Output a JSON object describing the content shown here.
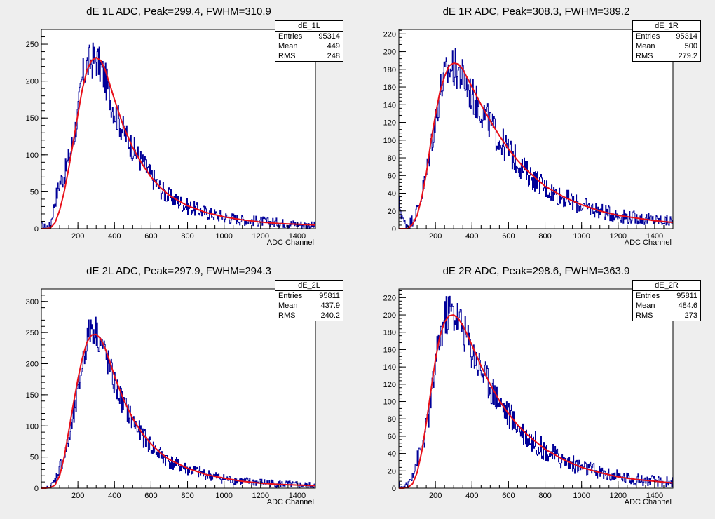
{
  "chart_data": [
    {
      "type": "histogram",
      "title": "dE 1L ADC, Peak=299.4, FWHM=310.9",
      "xlabel": "ADC Channel",
      "xlim": [
        0,
        1500
      ],
      "ylim": [
        0,
        270
      ],
      "yticks": [
        0,
        50,
        100,
        150,
        200,
        250
      ],
      "xticks": [
        200,
        400,
        600,
        800,
        1000,
        1200,
        1400
      ],
      "stats": {
        "name": "dE_1L",
        "entries": "95314",
        "mean": "449",
        "rms": "248"
      },
      "curve": {
        "peak": 299.4,
        "height": 232
      },
      "series": [
        {
          "kind": "histogram",
          "color": "#000099",
          "x": [
            0,
            25,
            50,
            75,
            100,
            125,
            150,
            175,
            200,
            225,
            250,
            275,
            300,
            325,
            350,
            375,
            400,
            450,
            500,
            550,
            600,
            650,
            700,
            800,
            900,
            1000,
            1100,
            1200,
            1300,
            1400,
            1500
          ],
          "values": [
            4,
            2,
            5,
            38,
            62,
            72,
            95,
            120,
            155,
            205,
            222,
            228,
            230,
            218,
            202,
            180,
            160,
            132,
            110,
            90,
            72,
            55,
            43,
            30,
            22,
            16,
            12,
            10,
            8,
            6,
            4
          ]
        },
        {
          "kind": "fit",
          "color": "#e8101a",
          "x": [
            0,
            25,
            50,
            75,
            100,
            125,
            150,
            175,
            200,
            225,
            250,
            275,
            300,
            325,
            350,
            375,
            400,
            450,
            500,
            550,
            600,
            650,
            700,
            800,
            900,
            1000,
            1100,
            1200,
            1300,
            1400,
            1500
          ],
          "values": [
            0,
            0,
            1,
            8,
            25,
            50,
            82,
            118,
            155,
            190,
            215,
            228,
            232,
            228,
            215,
            195,
            175,
            138,
            110,
            88,
            70,
            56,
            45,
            31,
            22,
            16,
            12,
            9,
            7,
            6,
            5
          ]
        }
      ]
    },
    {
      "type": "histogram",
      "title": "dE 1R ADC, Peak=308.3, FWHM=389.2",
      "xlabel": "ADC Channel",
      "xlim": [
        0,
        1500
      ],
      "ylim": [
        0,
        225
      ],
      "yticks": [
        0,
        20,
        40,
        60,
        80,
        100,
        120,
        140,
        160,
        180,
        200,
        220
      ],
      "xticks": [
        200,
        400,
        600,
        800,
        1000,
        1200,
        1400
      ],
      "stats": {
        "name": "dE_1R",
        "entries": "95314",
        "mean": "500",
        "rms": "279.2"
      },
      "curve": {
        "peak": 308.3,
        "height": 187
      },
      "series": [
        {
          "kind": "histogram",
          "color": "#000099",
          "x": [
            0,
            25,
            50,
            75,
            100,
            125,
            150,
            175,
            200,
            225,
            250,
            275,
            300,
            325,
            350,
            375,
            400,
            450,
            500,
            550,
            600,
            650,
            700,
            800,
            900,
            1000,
            1100,
            1200,
            1300,
            1400,
            1500
          ],
          "values": [
            30,
            8,
            4,
            10,
            20,
            38,
            60,
            95,
            120,
            155,
            170,
            180,
            182,
            178,
            170,
            160,
            150,
            135,
            118,
            100,
            88,
            75,
            63,
            46,
            35,
            26,
            20,
            15,
            12,
            10,
            8
          ]
        },
        {
          "kind": "fit",
          "color": "#e8101a",
          "x": [
            0,
            25,
            50,
            75,
            100,
            125,
            150,
            175,
            200,
            225,
            250,
            275,
            300,
            325,
            350,
            375,
            400,
            450,
            500,
            550,
            600,
            650,
            700,
            800,
            900,
            1000,
            1100,
            1200,
            1300,
            1400,
            1500
          ],
          "values": [
            0,
            0,
            0,
            5,
            15,
            35,
            62,
            98,
            128,
            155,
            172,
            184,
            187,
            186,
            180,
            170,
            160,
            140,
            122,
            105,
            90,
            77,
            66,
            48,
            36,
            27,
            20,
            15,
            12,
            9,
            7
          ]
        }
      ]
    },
    {
      "type": "histogram",
      "title": "dE 2L ADC, Peak=297.9, FWHM=294.3",
      "xlabel": "ADC Channel",
      "xlim": [
        0,
        1500
      ],
      "ylim": [
        0,
        320
      ],
      "yticks": [
        0,
        50,
        100,
        150,
        200,
        250,
        300
      ],
      "xticks": [
        200,
        400,
        600,
        800,
        1000,
        1200,
        1400
      ],
      "stats": {
        "name": "dE_2L",
        "entries": "95811",
        "mean": "437.9",
        "rms": "240.2"
      },
      "curve": {
        "peak": 297.9,
        "height": 247
      },
      "series": [
        {
          "kind": "histogram",
          "color": "#000099",
          "x": [
            0,
            25,
            50,
            75,
            100,
            125,
            150,
            175,
            200,
            225,
            250,
            275,
            300,
            325,
            350,
            375,
            400,
            450,
            500,
            550,
            600,
            650,
            700,
            800,
            900,
            1000,
            1100,
            1200,
            1300,
            1400,
            1500
          ],
          "values": [
            0,
            0,
            2,
            12,
            35,
            50,
            75,
            110,
            150,
            200,
            238,
            260,
            252,
            235,
            215,
            192,
            168,
            135,
            108,
            85,
            68,
            54,
            43,
            30,
            22,
            15,
            11,
            9,
            7,
            5,
            4
          ]
        },
        {
          "kind": "fit",
          "color": "#e8101a",
          "x": [
            0,
            25,
            50,
            75,
            100,
            125,
            150,
            175,
            200,
            225,
            250,
            275,
            300,
            325,
            350,
            375,
            400,
            450,
            500,
            550,
            600,
            650,
            700,
            800,
            900,
            1000,
            1100,
            1200,
            1300,
            1400,
            1500
          ],
          "values": [
            0,
            0,
            1,
            5,
            20,
            50,
            92,
            135,
            175,
            210,
            235,
            246,
            247,
            240,
            224,
            203,
            180,
            142,
            112,
            89,
            71,
            57,
            46,
            32,
            22,
            16,
            11,
            8,
            6,
            5,
            4
          ]
        }
      ]
    },
    {
      "type": "histogram",
      "title": "dE 2R ADC, Peak=298.6, FWHM=363.9",
      "xlabel": "ADC Channel",
      "xlim": [
        0,
        1500
      ],
      "ylim": [
        0,
        230
      ],
      "yticks": [
        0,
        20,
        40,
        60,
        80,
        100,
        120,
        140,
        160,
        180,
        200,
        220
      ],
      "xticks": [
        200,
        400,
        600,
        800,
        1000,
        1200,
        1400
      ],
      "stats": {
        "name": "dE_2R",
        "entries": "95811",
        "mean": "484.6",
        "rms": "273"
      },
      "curve": {
        "peak": 298.6,
        "height": 200
      },
      "series": [
        {
          "kind": "histogram",
          "color": "#000099",
          "x": [
            0,
            25,
            50,
            75,
            100,
            125,
            150,
            175,
            200,
            225,
            250,
            275,
            300,
            325,
            350,
            375,
            400,
            450,
            500,
            550,
            600,
            650,
            700,
            800,
            900,
            1000,
            1100,
            1200,
            1300,
            1400,
            1500
          ],
          "values": [
            3,
            0,
            4,
            18,
            32,
            45,
            68,
            100,
            140,
            175,
            195,
            205,
            202,
            196,
            185,
            172,
            158,
            138,
            118,
            100,
            85,
            72,
            60,
            44,
            32,
            24,
            18,
            13,
            10,
            8,
            7
          ]
        },
        {
          "kind": "fit",
          "color": "#e8101a",
          "x": [
            0,
            25,
            50,
            75,
            100,
            125,
            150,
            175,
            200,
            225,
            250,
            275,
            300,
            325,
            350,
            375,
            400,
            450,
            500,
            550,
            600,
            650,
            700,
            800,
            900,
            1000,
            1100,
            1200,
            1300,
            1400,
            1500
          ],
          "values": [
            0,
            0,
            1,
            5,
            18,
            42,
            75,
            112,
            148,
            176,
            192,
            199,
            200,
            196,
            188,
            177,
            165,
            141,
            120,
            101,
            86,
            73,
            62,
            45,
            33,
            24,
            18,
            13,
            10,
            8,
            6
          ]
        }
      ]
    }
  ],
  "labels": {
    "entries": "Entries",
    "mean": "Mean",
    "rms": "RMS"
  }
}
